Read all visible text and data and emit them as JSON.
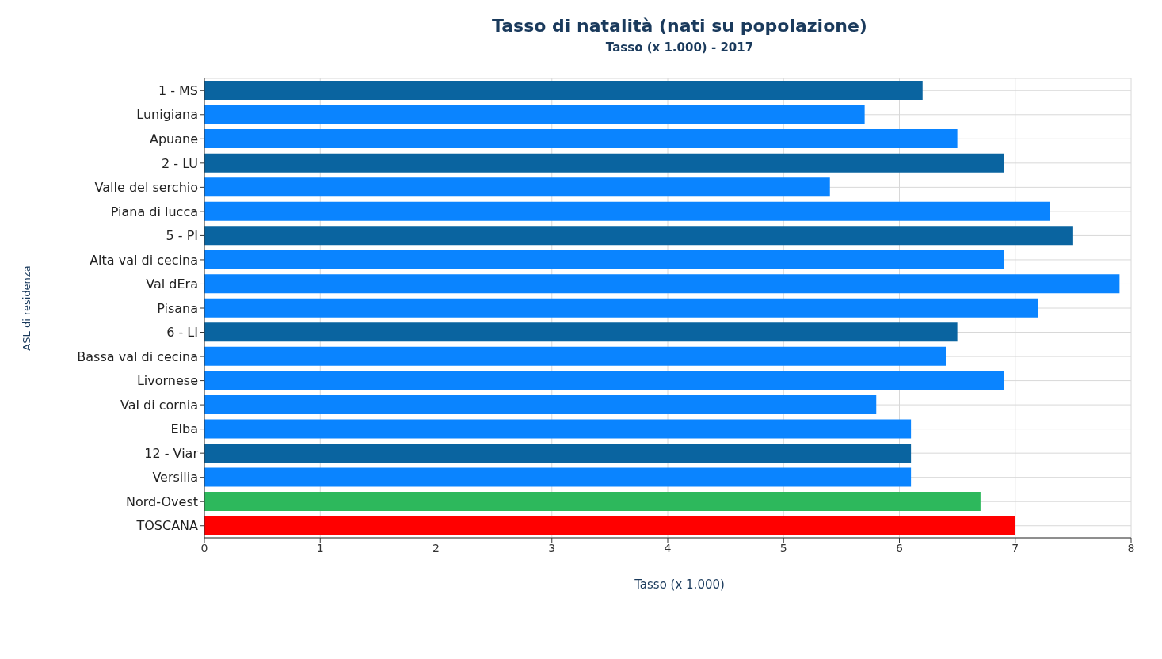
{
  "chart_data": {
    "type": "bar",
    "orientation": "horizontal",
    "title": "Tasso di natalità (nati su popolazione)",
    "subtitle": "Tasso (x 1.000) - 2017",
    "xlabel": "Tasso (x 1.000)",
    "ylabel": "ASL di residenza",
    "categories": [
      "1 - MS",
      "Lunigiana",
      "Apuane",
      "2 - LU",
      "Valle del serchio",
      "Piana di lucca",
      "5 - PI",
      "Alta val di cecina",
      "Val dEra",
      "Pisana",
      "6 - LI",
      "Bassa val di cecina",
      "Livornese",
      "Val di cornia",
      "Elba",
      "12 - Viar",
      "Versilia",
      "Nord-Ovest",
      "TOSCANA"
    ],
    "values": [
      6.2,
      5.7,
      6.5,
      6.9,
      5.4,
      7.3,
      7.5,
      6.9,
      7.9,
      7.2,
      6.5,
      6.4,
      6.9,
      5.8,
      6.1,
      6.1,
      6.1,
      6.7,
      7.0
    ],
    "colors": [
      "#0a64a0",
      "#0a84ff",
      "#0a84ff",
      "#0a64a0",
      "#0a84ff",
      "#0a84ff",
      "#0a64a0",
      "#0a84ff",
      "#0a84ff",
      "#0a84ff",
      "#0a64a0",
      "#0a84ff",
      "#0a84ff",
      "#0a84ff",
      "#0a84ff",
      "#0a64a0",
      "#0a84ff",
      "#2db85c",
      "#ff0000"
    ],
    "xlim": [
      0,
      8
    ],
    "xticks": [
      0,
      1,
      2,
      3,
      4,
      5,
      6,
      7,
      8
    ],
    "grid": true
  }
}
